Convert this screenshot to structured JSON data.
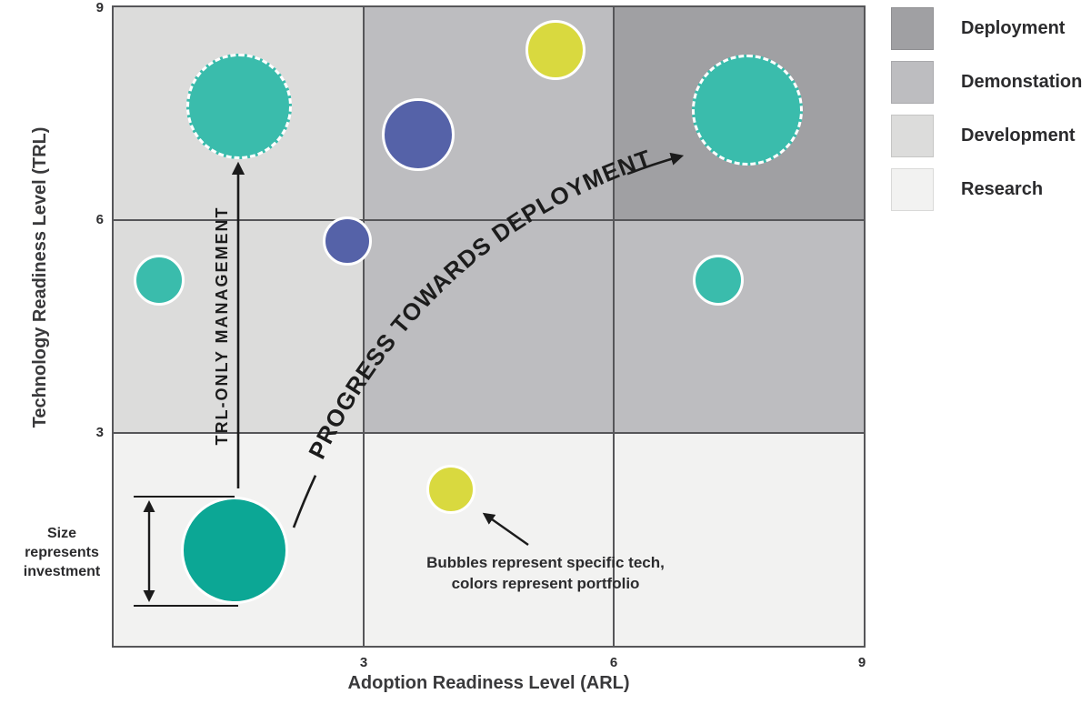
{
  "legend": [
    {
      "label": "Deployment",
      "color": "#a0a0a3"
    },
    {
      "label": "Demonstation",
      "color": "#bdbdc0"
    },
    {
      "label": "Development",
      "color": "#dcdcdb"
    },
    {
      "label": "Research",
      "color": "#f2f2f1"
    }
  ],
  "chart_data": {
    "type": "scatter",
    "title": "",
    "xlabel": "Adoption Readiness Level (ARL)",
    "ylabel": "Technology Readiness Level (TRL)",
    "xlim": [
      0,
      9
    ],
    "ylim": [
      0,
      9
    ],
    "xticks": [
      3,
      6,
      9
    ],
    "yticks": [
      3,
      6,
      9
    ],
    "grid": true,
    "legend_position": "top-right",
    "size_meaning": "Bubble size represents investment",
    "region_colors": {
      "deployment": "#a0a0a3",
      "demonstration": "#bdbdc0",
      "development": "#dcdcdb",
      "research": "#f2f2f1"
    },
    "regions": [
      {
        "name": "research",
        "x": [
          0,
          9
        ],
        "y": [
          0,
          3
        ]
      },
      {
        "name": "development",
        "x": [
          0,
          3
        ],
        "y": [
          3,
          9
        ]
      },
      {
        "name": "demonstration",
        "x": [
          3,
          6
        ],
        "y": [
          6,
          9
        ]
      },
      {
        "name": "demonstration",
        "x": [
          3,
          9
        ],
        "y": [
          3,
          6
        ]
      },
      {
        "name": "deployment",
        "x": [
          6,
          9
        ],
        "y": [
          6,
          9
        ]
      }
    ],
    "portfolio_colors": {
      "teal": "#3abcac",
      "green": "#0ca795",
      "blue": "#5562a8",
      "yellow": "#d9d93f"
    },
    "bubbles": [
      {
        "arl": 1.5,
        "trl": 7.6,
        "r": 58,
        "portfolio": "teal",
        "dashed": true
      },
      {
        "arl": 5.3,
        "trl": 8.4,
        "r": 33,
        "portfolio": "yellow",
        "dashed": false
      },
      {
        "arl": 3.65,
        "trl": 7.2,
        "r": 40,
        "portfolio": "blue",
        "dashed": false
      },
      {
        "arl": 7.6,
        "trl": 7.55,
        "r": 61,
        "portfolio": "teal",
        "dashed": true
      },
      {
        "arl": 2.8,
        "trl": 5.7,
        "r": 27,
        "portfolio": "blue",
        "dashed": false
      },
      {
        "arl": 0.55,
        "trl": 5.15,
        "r": 28,
        "portfolio": "teal",
        "dashed": false
      },
      {
        "arl": 7.25,
        "trl": 5.15,
        "r": 28,
        "portfolio": "teal",
        "dashed": false
      },
      {
        "arl": 1.45,
        "trl": 1.35,
        "r": 59,
        "portfolio": "green",
        "dashed": false
      },
      {
        "arl": 4.05,
        "trl": 2.2,
        "r": 27,
        "portfolio": "yellow",
        "dashed": false
      }
    ],
    "annotations": {
      "trl_only": "TRL-ONLY MANAGEMENT",
      "progress": "PROGRESS TOWARDS DEPLOYMENT",
      "size_note": [
        "Size",
        "represents",
        "investment"
      ],
      "bubble_note": [
        "Bubbles represent specific tech,",
        "colors represent portfolio"
      ]
    }
  }
}
